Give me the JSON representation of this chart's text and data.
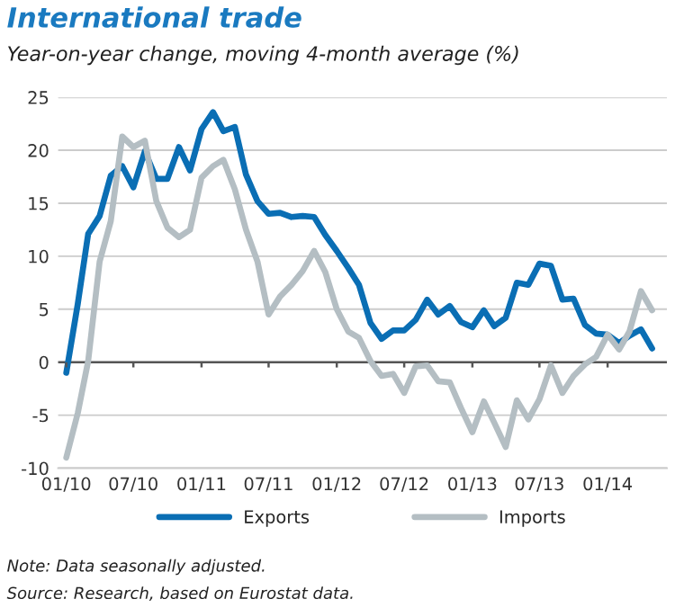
{
  "chart_data": {
    "type": "line",
    "title": "International trade",
    "subtitle": "Year-on-year change, moving 4-month average (%)",
    "x": [
      "2010-01",
      "2010-02",
      "2010-03",
      "2010-04",
      "2010-05",
      "2010-06",
      "2010-07",
      "2010-08",
      "2010-09",
      "2010-10",
      "2010-11",
      "2010-12",
      "2011-01",
      "2011-02",
      "2011-03",
      "2011-04",
      "2011-05",
      "2011-06",
      "2011-07",
      "2011-08",
      "2011-09",
      "2011-10",
      "2011-11",
      "2011-12",
      "2012-01",
      "2012-02",
      "2012-03",
      "2012-04",
      "2012-05",
      "2012-06",
      "2012-07",
      "2012-08",
      "2012-09",
      "2012-10",
      "2012-11",
      "2012-12",
      "2013-01",
      "2013-02",
      "2013-03",
      "2013-04",
      "2013-05",
      "2013-06",
      "2013-07",
      "2013-08",
      "2013-09",
      "2013-10",
      "2013-11",
      "2013-12",
      "2014-01",
      "2014-02",
      "2014-03",
      "2014-04",
      "2014-05"
    ],
    "series": [
      {
        "name": "Exports",
        "color": "#0a6eb4",
        "values": [
          -1.0,
          5.5,
          12.1,
          13.8,
          17.6,
          18.5,
          16.5,
          19.9,
          17.3,
          17.3,
          20.3,
          18.1,
          22.0,
          23.6,
          21.8,
          22.2,
          17.7,
          15.2,
          14.0,
          14.1,
          13.7,
          13.8,
          13.7,
          12.0,
          10.5,
          8.9,
          7.3,
          3.7,
          2.2,
          3.0,
          3.0,
          4.0,
          5.9,
          4.5,
          5.3,
          3.8,
          3.3,
          4.9,
          3.4,
          4.2,
          7.5,
          7.3,
          9.3,
          9.1,
          5.9,
          6.0,
          3.5,
          2.7,
          2.6,
          1.8,
          2.5,
          3.1,
          1.3
        ]
      },
      {
        "name": "Imports",
        "color": "#b4bec3",
        "values": [
          -9.0,
          -4.8,
          0.1,
          9.5,
          13.3,
          21.3,
          20.3,
          20.9,
          15.2,
          12.7,
          11.8,
          12.5,
          17.4,
          18.5,
          19.1,
          16.3,
          12.5,
          9.5,
          4.5,
          6.2,
          7.3,
          8.6,
          10.5,
          8.5,
          5.0,
          2.9,
          2.3,
          0.1,
          -1.3,
          -1.1,
          -2.9,
          -0.4,
          -0.3,
          -1.8,
          -1.9,
          -4.3,
          -6.6,
          -3.7,
          -5.7,
          -8.0,
          -3.6,
          -5.4,
          -3.5,
          -0.3,
          -2.9,
          -1.3,
          -0.2,
          0.5,
          2.6,
          1.2,
          2.9,
          6.7,
          4.9
        ]
      }
    ],
    "xlim": [
      "2009-12-10",
      "2014-06-10"
    ],
    "xticks": [
      {
        "value": "2010-01",
        "label": "01/10"
      },
      {
        "value": "2010-07",
        "label": "07/10"
      },
      {
        "value": "2011-01",
        "label": "01/11"
      },
      {
        "value": "2011-07",
        "label": "07/11"
      },
      {
        "value": "2012-01",
        "label": "01/12"
      },
      {
        "value": "2012-07",
        "label": "07/12"
      },
      {
        "value": "2013-01",
        "label": "01/13"
      },
      {
        "value": "2013-07",
        "label": "07/13"
      },
      {
        "value": "2014-01",
        "label": "01/14"
      }
    ],
    "ylim": [
      -10,
      25
    ],
    "yticks": [
      -10,
      -5,
      0,
      5,
      10,
      15,
      20,
      25
    ],
    "ref_lines": [
      {
        "axis": "y",
        "value": 0,
        "color": "#555555"
      }
    ],
    "grid": "y",
    "legend": "bottom",
    "line_style": "solid",
    "marker": "none",
    "annotations": [
      "Note: Data seasonally adjusted.",
      "Source: Research, based on Eurostat data."
    ]
  }
}
